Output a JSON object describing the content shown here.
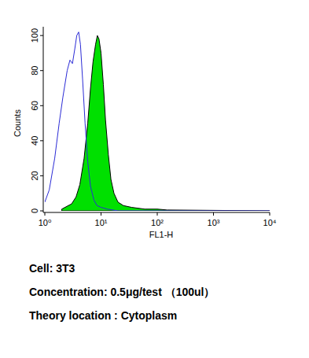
{
  "chart_data": {
    "type": "line",
    "log": "x",
    "grid": false,
    "x_label": "FL1-H",
    "y_label": "Counts",
    "xlim": [
      1,
      10000
    ],
    "xticks": [
      {
        "value": 1,
        "label": "10⁰"
      },
      {
        "value": 10,
        "label": "10¹"
      },
      {
        "value": 100,
        "label": "10²"
      },
      {
        "value": 1000,
        "label": "10³"
      },
      {
        "value": 10000,
        "label": "10⁴"
      }
    ],
    "ylim": [
      0,
      105
    ],
    "yticks": [
      0,
      20,
      40,
      60,
      80,
      100
    ],
    "series": [
      {
        "type": "line",
        "color": "#2b2bd6",
        "x": [
          1.0,
          1.2,
          1.5,
          1.8,
          2.1,
          2.5,
          2.8,
          3.1,
          3.4,
          3.7,
          4.0,
          4.3,
          4.7,
          5.2,
          5.8,
          6.5,
          7.5,
          8.5,
          10,
          13,
          20,
          100,
          10000
        ],
        "values": [
          5,
          12,
          30,
          50,
          65,
          80,
          86,
          84,
          92,
          100,
          102,
          95,
          75,
          50,
          28,
          14,
          6,
          3,
          2,
          1,
          0,
          0,
          0
        ]
      },
      {
        "type": "area",
        "color": "#00e000",
        "x": [
          2,
          3,
          3.6,
          4.2,
          5,
          5.8,
          6.5,
          7.2,
          8,
          8.6,
          9.2,
          10,
          11,
          12,
          13.5,
          15,
          17,
          20,
          25,
          35,
          60,
          100,
          150,
          10000
        ],
        "values": [
          1,
          4,
          8,
          15,
          30,
          50,
          70,
          85,
          95,
          100,
          98,
          90,
          72,
          52,
          32,
          18,
          10,
          5,
          3,
          2,
          1,
          1,
          0.5,
          0
        ]
      }
    ],
    "annotations": [
      "Cell: 3T3",
      "Concentration: 0.5μg/test （100ul）",
      "Theory location : Cytoplasm"
    ]
  }
}
